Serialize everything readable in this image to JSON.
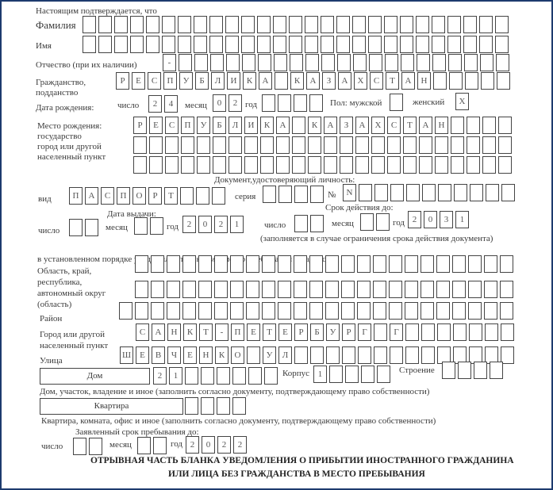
{
  "intro": "Настоящим подтверждается, что",
  "surname": {
    "label": "Фамилия",
    "value": ""
  },
  "name": {
    "label": "Имя",
    "value": ""
  },
  "patronymic": {
    "label": "Отчество (при их наличии)",
    "value": "-"
  },
  "citizenship": {
    "label1": "Гражданство,",
    "label2": "подданство",
    "value": "РЕСПУБЛИКА КАЗАХСТАН"
  },
  "birth_date": {
    "label": "Дата рождения:",
    "day_label": "число",
    "day": "24",
    "month_label": "месяц",
    "month": "02",
    "year_label": "год",
    "year": ""
  },
  "sex": {
    "label_male": "Пол: мужской",
    "male": "",
    "label_female": "женский",
    "female": "Х"
  },
  "birth_place": {
    "label1": "Место рождения:",
    "label2": "государство",
    "label3": "город или другой",
    "label4": "населенный пункт",
    "state": "РЕСПУБЛИКА КАЗАХСТАН",
    "city": "",
    "city2": ""
  },
  "document": {
    "heading": "Документ,удостоверяющий личность:",
    "type_label": "вид",
    "type": "ПАСПОРТ",
    "series_label": "серия",
    "series": "",
    "number_label": "№",
    "number": "N",
    "issue_heading": "Дата выдачи:",
    "issue_day_label": "число",
    "issue_day": "",
    "issue_month_label": "месяц",
    "issue_month": "",
    "issue_year_label": "год",
    "issue_year": "2021",
    "valid_heading": "Срок действия до:",
    "valid_day_label": "число",
    "valid_day": "",
    "valid_month_label": "месяц",
    "valid_month": "",
    "valid_year_label": "год",
    "valid_year": "2031",
    "valid_note": "(заполняется в случае ограничения срока действия документа)"
  },
  "address": {
    "heading": "в установленном порядке уведомил о прибытии в место пребывания по адресу:",
    "region_label1": "Область, край,",
    "region_label2": "республика,",
    "region_label3": "автономный округ",
    "region_label4": "(область)",
    "region": "",
    "region2": "",
    "district_label": "Район",
    "district": "",
    "city_label1": "Город или другой",
    "city_label2": "населенный пункт",
    "city": "САНКТ-ПЕТЕРБУРГ Г",
    "street_label": "Улица",
    "street": "ШЕВЧЕНКО УЛ",
    "house_label": "Дом",
    "house": "21",
    "building_label": "Корпус",
    "building": "1",
    "structure_label": "Строение",
    "structure": "",
    "house_note": "Дом, участок, владение и иное (заполнить согласно документу, подтверждающему право собственности)",
    "flat_label": "Квартира",
    "flat": "",
    "flat_note": "Квартира, комната, офис и иное (заполнить согласно документу, подтверждающему право собственности)"
  },
  "stay": {
    "heading": "Заявленный срок пребывания до:",
    "day_label": "число",
    "day": "",
    "month_label": "месяц",
    "month": "",
    "year_label": "год",
    "year": "2022"
  },
  "footer": {
    "line1": "ОТРЫВНАЯ ЧАСТЬ БЛАНКА УВЕДОМЛЕНИЯ О ПРИБЫТИИ ИНОСТРАННОГО ГРАЖДАНИНА",
    "line2": "ИЛИ ЛИЦА БЕЗ ГРАЖДАНСТВА В МЕСТО ПРЕБЫВАНИЯ"
  }
}
